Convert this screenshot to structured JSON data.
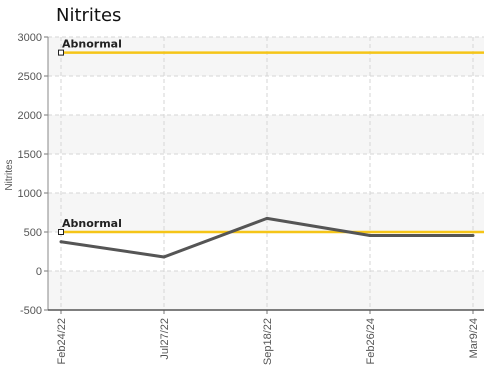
{
  "chart_data": {
    "type": "line",
    "title": "Nitrites",
    "ylabel": "Nitrites",
    "xlabel": "",
    "categories": [
      "Feb24/22",
      "Jul27/22",
      "Sep18/22",
      "Feb26/24",
      "Mar9/24"
    ],
    "y_ticks": [
      "-500",
      "0",
      "500",
      "1000",
      "1500",
      "2000",
      "2500",
      "3000"
    ],
    "ylim": [
      -500,
      3000
    ],
    "series": [
      {
        "values": [
          375,
          180,
          675,
          455,
          455
        ],
        "color": "#555555"
      }
    ],
    "thresholds": [
      {
        "label": "Abnormal",
        "value": 2800,
        "color": "#f5c518"
      },
      {
        "label": "Abnormal",
        "value": 500,
        "color": "#f5c518"
      }
    ],
    "grid": true
  }
}
